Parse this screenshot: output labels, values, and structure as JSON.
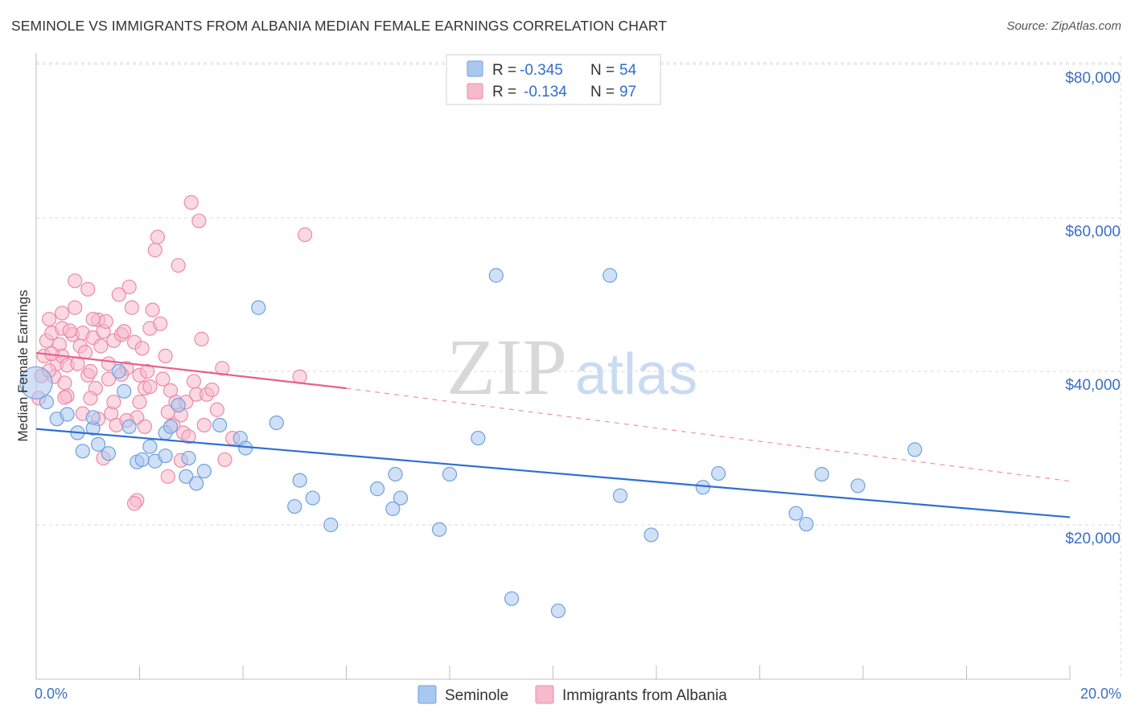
{
  "title": "SEMINOLE VS IMMIGRANTS FROM ALBANIA MEDIAN FEMALE EARNINGS CORRELATION CHART",
  "source": "Source: ZipAtlas.com",
  "watermark": {
    "zip": "ZIP",
    "atlas": "atlas"
  },
  "legend_top": [
    {
      "r_label": "R =",
      "r_value": "-0.345",
      "n_label": "N =",
      "n_value": "54"
    },
    {
      "r_label": "R =",
      "r_value": "-0.134",
      "n_label": "N =",
      "n_value": "97"
    }
  ],
  "colors": {
    "seminole_fill": "#a9c8f0",
    "seminole_stroke": "#6f9fe0",
    "seminole_line": "#2f6fd0",
    "albania_fill": "#f7b9cc",
    "albania_stroke": "#ec8aa8",
    "albania_line": "#e8608a",
    "grid": "#d9d9d9",
    "tick_text": "#3a6fc4"
  },
  "chart_data": {
    "type": "scatter",
    "title": "SEMINOLE VS IMMIGRANTS FROM ALBANIA MEDIAN FEMALE EARNINGS CORRELATION CHART",
    "xlabel": "",
    "ylabel": "Median Female Earnings",
    "xlim": [
      0,
      20
    ],
    "ylim": [
      0,
      82000
    ],
    "x_tick_labels": [
      "0.0%",
      "20.0%"
    ],
    "y_tick_labels": [
      "$20,000",
      "$40,000",
      "$60,000",
      "$80,000"
    ],
    "y_ticks": [
      20000,
      40000,
      60000,
      80000
    ],
    "grid": true,
    "legend_position": "top-center",
    "series": [
      {
        "name": "Seminole",
        "trend": {
          "x0": 0,
          "y0": 32500,
          "x1": 20,
          "y1": 21000
        },
        "points": [
          [
            0.2,
            36000
          ],
          [
            0.4,
            33800
          ],
          [
            0.6,
            34400
          ],
          [
            0.8,
            32000
          ],
          [
            0.9,
            29600
          ],
          [
            1.1,
            32600
          ],
          [
            1.2,
            30500
          ],
          [
            1.4,
            29300
          ],
          [
            1.6,
            40000
          ],
          [
            1.7,
            37400
          ],
          [
            1.8,
            32800
          ],
          [
            1.95,
            28200
          ],
          [
            2.05,
            28500
          ],
          [
            2.2,
            30200
          ],
          [
            2.3,
            28300
          ],
          [
            2.5,
            32000
          ],
          [
            2.6,
            32800
          ],
          [
            2.75,
            35600
          ],
          [
            2.95,
            28700
          ],
          [
            2.9,
            26300
          ],
          [
            3.1,
            25400
          ],
          [
            3.25,
            27000
          ],
          [
            3.55,
            33000
          ],
          [
            3.95,
            31300
          ],
          [
            4.05,
            30000
          ],
          [
            4.3,
            48300
          ],
          [
            4.65,
            33300
          ],
          [
            5.0,
            22400
          ],
          [
            5.1,
            25800
          ],
          [
            5.35,
            23500
          ],
          [
            5.7,
            20000
          ],
          [
            6.6,
            24700
          ],
          [
            6.9,
            22100
          ],
          [
            6.95,
            26600
          ],
          [
            7.05,
            23500
          ],
          [
            7.8,
            19400
          ],
          [
            8.0,
            26600
          ],
          [
            8.55,
            31300
          ],
          [
            8.9,
            52500
          ],
          [
            9.2,
            10400
          ],
          [
            10.1,
            8800
          ],
          [
            11.1,
            52500
          ],
          [
            11.3,
            23800
          ],
          [
            11.9,
            18700
          ],
          [
            12.9,
            24900
          ],
          [
            13.2,
            26700
          ],
          [
            14.7,
            21500
          ],
          [
            14.9,
            20100
          ],
          [
            15.2,
            26600
          ],
          [
            15.9,
            25100
          ],
          [
            17.0,
            29800
          ],
          [
            1.1,
            34000
          ],
          [
            2.5,
            29000
          ],
          [
            0.0,
            38500
          ]
        ]
      },
      {
        "name": "Immigrants from Albania",
        "trend": {
          "x0": 0,
          "y0": 42400,
          "x1": 6,
          "y1": 37800,
          "x_dash_end": 20,
          "y_dash_end": 25700
        },
        "points": [
          [
            0.1,
            39400
          ],
          [
            0.15,
            42000
          ],
          [
            0.2,
            44000
          ],
          [
            0.25,
            46800
          ],
          [
            0.3,
            45000
          ],
          [
            0.35,
            39300
          ],
          [
            0.4,
            41000
          ],
          [
            0.45,
            43500
          ],
          [
            0.5,
            45600
          ],
          [
            0.5,
            47600
          ],
          [
            0.55,
            38500
          ],
          [
            0.6,
            36800
          ],
          [
            0.5,
            42000
          ],
          [
            0.6,
            40800
          ],
          [
            0.7,
            44800
          ],
          [
            0.75,
            48300
          ],
          [
            0.75,
            51800
          ],
          [
            0.8,
            41000
          ],
          [
            0.85,
            43300
          ],
          [
            0.9,
            45000
          ],
          [
            0.95,
            42500
          ],
          [
            1.0,
            50700
          ],
          [
            1.0,
            39500
          ],
          [
            1.05,
            40000
          ],
          [
            1.1,
            44400
          ],
          [
            1.15,
            37800
          ],
          [
            1.2,
            46700
          ],
          [
            1.25,
            43300
          ],
          [
            1.3,
            45200
          ],
          [
            1.35,
            46500
          ],
          [
            1.4,
            41000
          ],
          [
            1.45,
            34500
          ],
          [
            1.5,
            44000
          ],
          [
            1.55,
            33000
          ],
          [
            1.6,
            50000
          ],
          [
            1.65,
            44800
          ],
          [
            1.7,
            45200
          ],
          [
            1.75,
            40400
          ],
          [
            1.8,
            51000
          ],
          [
            1.85,
            48300
          ],
          [
            1.9,
            43800
          ],
          [
            1.95,
            34000
          ],
          [
            2.0,
            36000
          ],
          [
            2.0,
            39500
          ],
          [
            2.05,
            43000
          ],
          [
            2.1,
            37800
          ],
          [
            2.15,
            40000
          ],
          [
            2.2,
            45600
          ],
          [
            2.25,
            48000
          ],
          [
            2.3,
            55800
          ],
          [
            2.35,
            57500
          ],
          [
            2.4,
            46200
          ],
          [
            2.45,
            39000
          ],
          [
            2.5,
            42000
          ],
          [
            2.55,
            34700
          ],
          [
            2.6,
            37500
          ],
          [
            2.65,
            33000
          ],
          [
            2.7,
            36000
          ],
          [
            2.75,
            53800
          ],
          [
            2.8,
            28400
          ],
          [
            2.85,
            32000
          ],
          [
            2.9,
            36000
          ],
          [
            3.0,
            62000
          ],
          [
            3.05,
            38700
          ],
          [
            3.1,
            37000
          ],
          [
            3.15,
            59600
          ],
          [
            3.2,
            44200
          ],
          [
            3.25,
            33000
          ],
          [
            3.3,
            37000
          ],
          [
            3.4,
            37600
          ],
          [
            3.6,
            40400
          ],
          [
            3.65,
            28500
          ],
          [
            3.8,
            31300
          ],
          [
            5.1,
            39300
          ],
          [
            5.2,
            57800
          ],
          [
            1.3,
            28700
          ],
          [
            1.5,
            36000
          ],
          [
            1.95,
            23200
          ],
          [
            1.9,
            22800
          ],
          [
            2.55,
            26300
          ],
          [
            0.55,
            36600
          ],
          [
            0.25,
            40100
          ],
          [
            0.9,
            34500
          ],
          [
            1.2,
            33800
          ],
          [
            1.05,
            36500
          ],
          [
            1.65,
            39600
          ],
          [
            2.2,
            38000
          ],
          [
            1.75,
            33600
          ],
          [
            0.3,
            42300
          ],
          [
            0.65,
            45300
          ],
          [
            1.1,
            46800
          ],
          [
            1.4,
            39000
          ],
          [
            2.8,
            34300
          ],
          [
            2.95,
            31500
          ],
          [
            3.5,
            35000
          ],
          [
            0.05,
            36500
          ],
          [
            2.1,
            32800
          ]
        ]
      }
    ]
  },
  "bottom_legend": [
    "Seminole",
    "Immigrants from Albania"
  ]
}
